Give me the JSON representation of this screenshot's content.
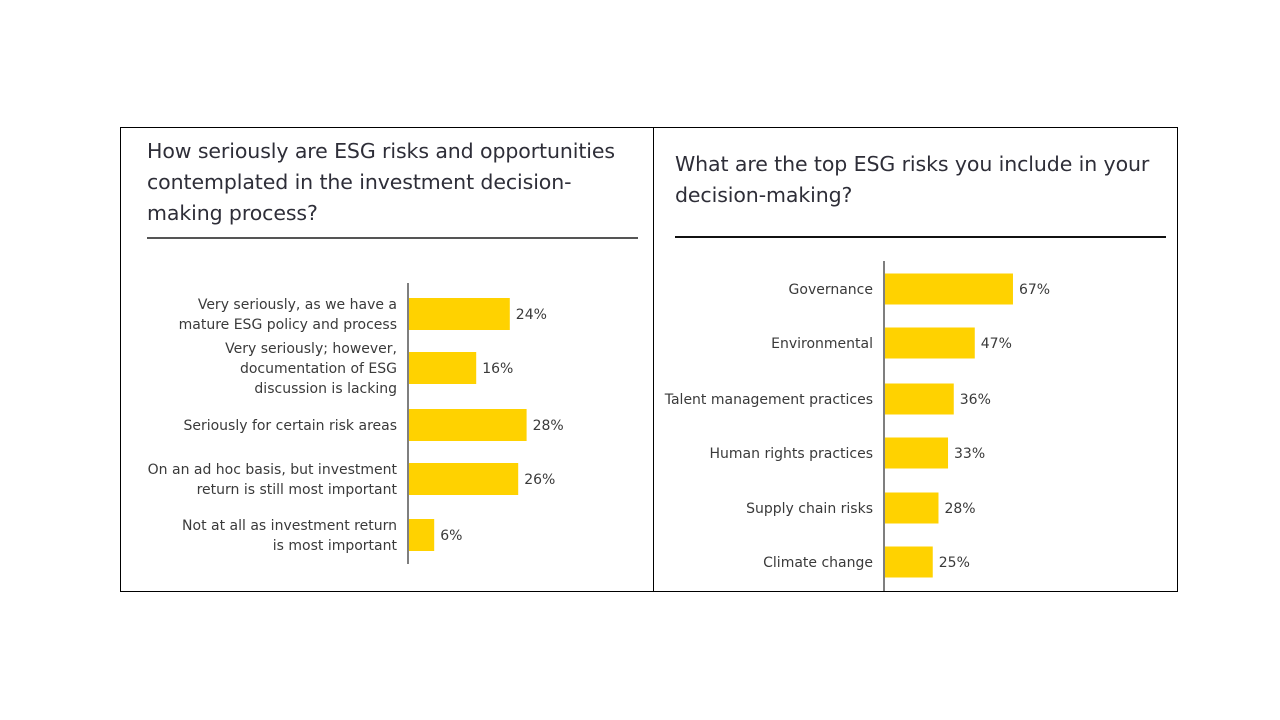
{
  "chart_data": [
    {
      "type": "bar",
      "orientation": "horizontal",
      "title": "How seriously are ESG risks and opportunities contemplated in the investment decision-making process?",
      "title_lines": [
        "How seriously are ESG risks and opportunities",
        "contemplated in the investment decision-",
        "making process?"
      ],
      "categories": [
        [
          "Very seriously, as we have a",
          "mature ESG policy and process"
        ],
        [
          "Very seriously; however,",
          "documentation of ESG",
          "discussion is lacking"
        ],
        [
          "Seriously for certain risk areas"
        ],
        [
          "On an ad hoc basis, but investment",
          "return is still most important"
        ],
        [
          "Not at all as investment return",
          "is most important"
        ]
      ],
      "values": [
        24,
        16,
        28,
        26,
        6
      ],
      "value_labels": [
        "24%",
        "16%",
        "28%",
        "26%",
        "6%"
      ],
      "unit": "%",
      "xlim": [
        0,
        100
      ],
      "bar_color": "#FFD200",
      "grid": false
    },
    {
      "type": "bar",
      "orientation": "horizontal",
      "title": "What are the top ESG risks you include in your decision-making?",
      "title_lines": [
        "What are the top ESG risks you include in your",
        "decision-making?"
      ],
      "categories": [
        [
          "Governance"
        ],
        [
          "Environmental"
        ],
        [
          "Talent management practices"
        ],
        [
          "Human rights practices"
        ],
        [
          "Supply chain risks"
        ],
        [
          "Climate change"
        ]
      ],
      "values": [
        67,
        47,
        36,
        33,
        28,
        25
      ],
      "value_labels": [
        "67%",
        "47%",
        "36%",
        "33%",
        "28%",
        "25%"
      ],
      "unit": "%",
      "xlim": [
        0,
        100
      ],
      "bar_color": "#FFD200",
      "grid": false
    }
  ]
}
